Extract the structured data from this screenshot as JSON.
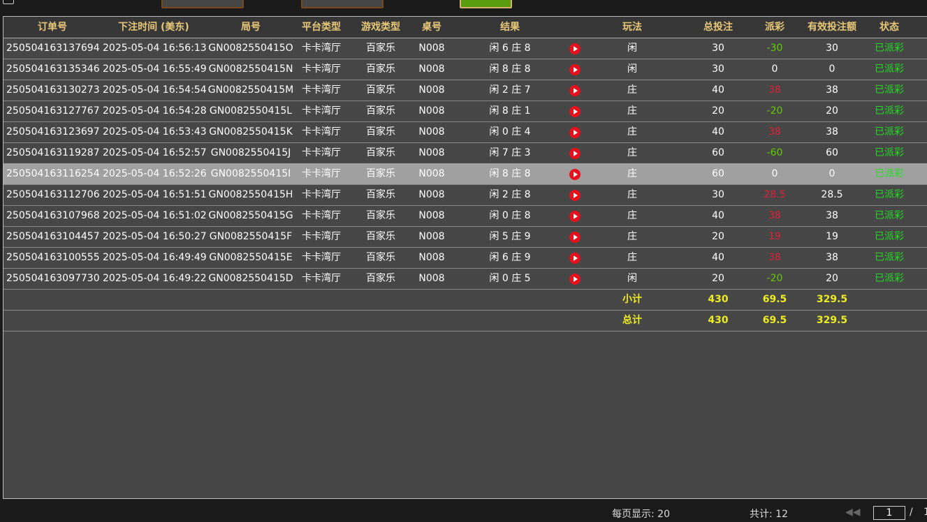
{
  "headers": [
    "订单号",
    "下注时间 (美东)",
    "局号",
    "平台类型",
    "游戏类型",
    "桌号",
    "结果",
    "",
    "玩法",
    "总投注",
    "派彩",
    "有效投注额",
    "状态"
  ],
  "rows": [
    [
      "250504163137694",
      "2025-05-04 16:56:13",
      "GN0082550415O",
      "卡卡湾厅",
      "百家乐",
      "N008",
      "闲 6 庄 8",
      "闲",
      "30",
      "-30",
      "30",
      "已派彩"
    ],
    [
      "250504163135346",
      "2025-05-04 16:55:49",
      "GN0082550415N",
      "卡卡湾厅",
      "百家乐",
      "N008",
      "闲 8 庄 8",
      "闲",
      "30",
      "0",
      "0",
      "已派彩"
    ],
    [
      "250504163130273",
      "2025-05-04 16:54:54",
      "GN0082550415M",
      "卡卡湾厅",
      "百家乐",
      "N008",
      "闲 2 庄 7",
      "庄",
      "40",
      "38",
      "38",
      "已派彩"
    ],
    [
      "250504163127767",
      "2025-05-04 16:54:28",
      "GN0082550415L",
      "卡卡湾厅",
      "百家乐",
      "N008",
      "闲 8 庄 1",
      "庄",
      "20",
      "-20",
      "20",
      "已派彩"
    ],
    [
      "250504163123697",
      "2025-05-04 16:53:43",
      "GN0082550415K",
      "卡卡湾厅",
      "百家乐",
      "N008",
      "闲 0 庄 4",
      "庄",
      "40",
      "38",
      "38",
      "已派彩"
    ],
    [
      "250504163119287",
      "2025-05-04 16:52:57",
      "GN0082550415J",
      "卡卡湾厅",
      "百家乐",
      "N008",
      "闲 7 庄 3",
      "庄",
      "60",
      "-60",
      "60",
      "已派彩"
    ],
    [
      "250504163116254",
      "2025-05-04 16:52:26",
      "GN0082550415I",
      "卡卡湾厅",
      "百家乐",
      "N008",
      "闲 8 庄 8",
      "庄",
      "60",
      "0",
      "0",
      "已派彩"
    ],
    [
      "250504163112706",
      "2025-05-04 16:51:51",
      "GN0082550415H",
      "卡卡湾厅",
      "百家乐",
      "N008",
      "闲 2 庄 8",
      "庄",
      "30",
      "28.5",
      "28.5",
      "已派彩"
    ],
    [
      "250504163107968",
      "2025-05-04 16:51:02",
      "GN0082550415G",
      "卡卡湾厅",
      "百家乐",
      "N008",
      "闲 0 庄 8",
      "庄",
      "40",
      "38",
      "38",
      "已派彩"
    ],
    [
      "250504163104457",
      "2025-05-04 16:50:27",
      "GN0082550415F",
      "卡卡湾厅",
      "百家乐",
      "N008",
      "闲 5 庄 9",
      "庄",
      "20",
      "19",
      "19",
      "已派彩"
    ],
    [
      "250504163100555",
      "2025-05-04 16:49:49",
      "GN0082550415E",
      "卡卡湾厅",
      "百家乐",
      "N008",
      "闲 6 庄 9",
      "庄",
      "40",
      "38",
      "38",
      "已派彩"
    ],
    [
      "250504163097730",
      "2025-05-04 16:49:22",
      "GN0082550415D",
      "卡卡湾厅",
      "百家乐",
      "N008",
      "闲 0 庄 5",
      "闲",
      "20",
      "-20",
      "20",
      "已派彩"
    ]
  ],
  "selected_row": 6,
  "subtotal": {
    "label": "小计",
    "total": "430",
    "payout": "69.5",
    "valid": "329.5"
  },
  "grandtotal": {
    "label": "总计",
    "total": "430",
    "payout": "69.5",
    "valid": "329.5"
  },
  "footer": {
    "per_page": "每页显示: 20",
    "count": "共计: 12",
    "page": "1",
    "sep": "/",
    "pages": "1"
  },
  "colors": {
    "header_text": "#e8c878",
    "negative": "#5ed000",
    "positive": "#e0203a",
    "status": "#22dd22",
    "sum": "#ecec20"
  },
  "row_icon": "play-icon"
}
